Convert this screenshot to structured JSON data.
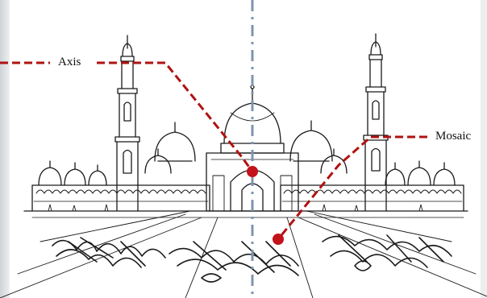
{
  "labels": {
    "axis": "Axis",
    "mosaic": "Mosaic"
  },
  "colors": {
    "annotation": "#b01212",
    "axis_line": "#7f93b0",
    "sketch": "#1a1a1a"
  }
}
